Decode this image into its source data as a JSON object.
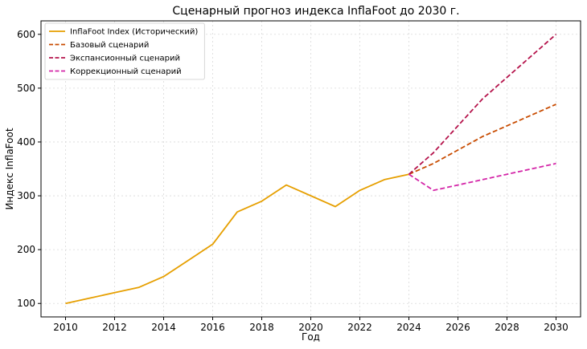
{
  "chart_data": {
    "type": "line",
    "title": "Сценарный прогноз индекса InflaFoot до 2030 г.",
    "xlabel": "Год",
    "ylabel": "Индекс InflaFoot",
    "xlim": [
      2009.0,
      2031.0
    ],
    "ylim": [
      75,
      625
    ],
    "x_ticks": [
      2010,
      2012,
      2014,
      2016,
      2018,
      2020,
      2022,
      2024,
      2026,
      2028,
      2030
    ],
    "y_ticks": [
      100,
      200,
      300,
      400,
      500,
      600
    ],
    "grid": true,
    "legend_position": "top-left",
    "series": [
      {
        "name": "InflaFoot Index (Исторический)",
        "color": "#e69f00",
        "dash": "solid",
        "x": [
          2010,
          2011,
          2012,
          2013,
          2014,
          2015,
          2016,
          2017,
          2018,
          2019,
          2020,
          2021,
          2022,
          2023,
          2024
        ],
        "y": [
          100,
          110,
          120,
          130,
          150,
          180,
          210,
          270,
          290,
          320,
          300,
          280,
          310,
          330,
          340
        ]
      },
      {
        "name": "Базовый сценарий",
        "color": "#c84b00",
        "dash": "dashed",
        "x": [
          2024,
          2025,
          2026,
          2027,
          2028,
          2029,
          2030
        ],
        "y": [
          340,
          360,
          385,
          410,
          430,
          450,
          470
        ]
      },
      {
        "name": "Экспансионный сценарий",
        "color": "#b5134b",
        "dash": "dashed",
        "x": [
          2024,
          2025,
          2026,
          2027,
          2028,
          2029,
          2030
        ],
        "y": [
          340,
          380,
          430,
          480,
          520,
          560,
          600
        ]
      },
      {
        "name": "Коррекционный сценарий",
        "color": "#d426a8",
        "dash": "dashed",
        "x": [
          2024,
          2025,
          2026,
          2027,
          2028,
          2029,
          2030
        ],
        "y": [
          340,
          310,
          320,
          330,
          340,
          350,
          360
        ]
      }
    ]
  }
}
